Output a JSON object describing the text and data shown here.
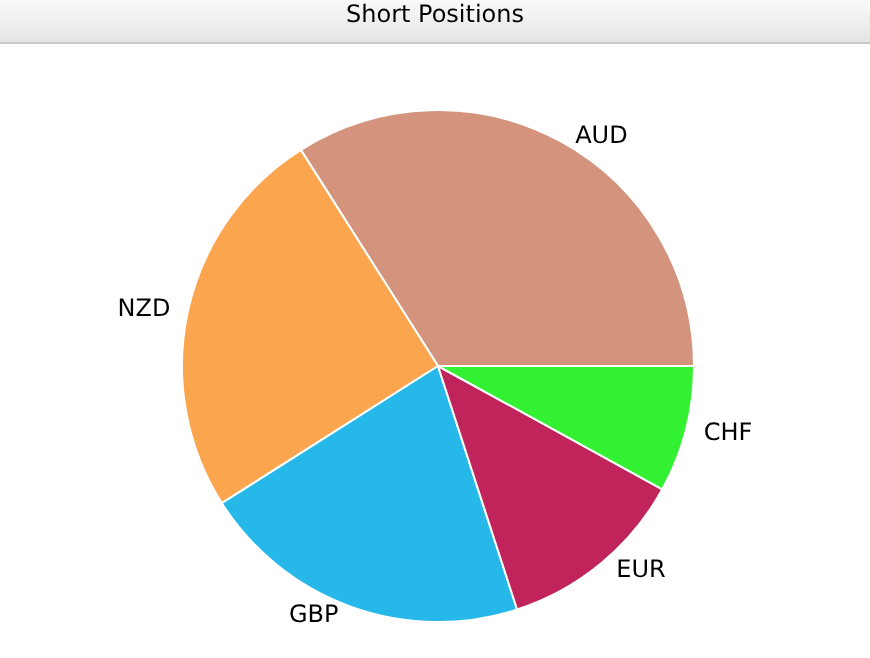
{
  "chart_data": {
    "type": "pie",
    "title": "Short Positions",
    "categories": [
      "AUD",
      "NZD",
      "GBP",
      "EUR",
      "CHF"
    ],
    "values": [
      34,
      25,
      21,
      12,
      8
    ],
    "colors": [
      "#d4937c",
      "#fca54f",
      "#25b8e8",
      "#c0245a",
      "#33f033"
    ]
  }
}
